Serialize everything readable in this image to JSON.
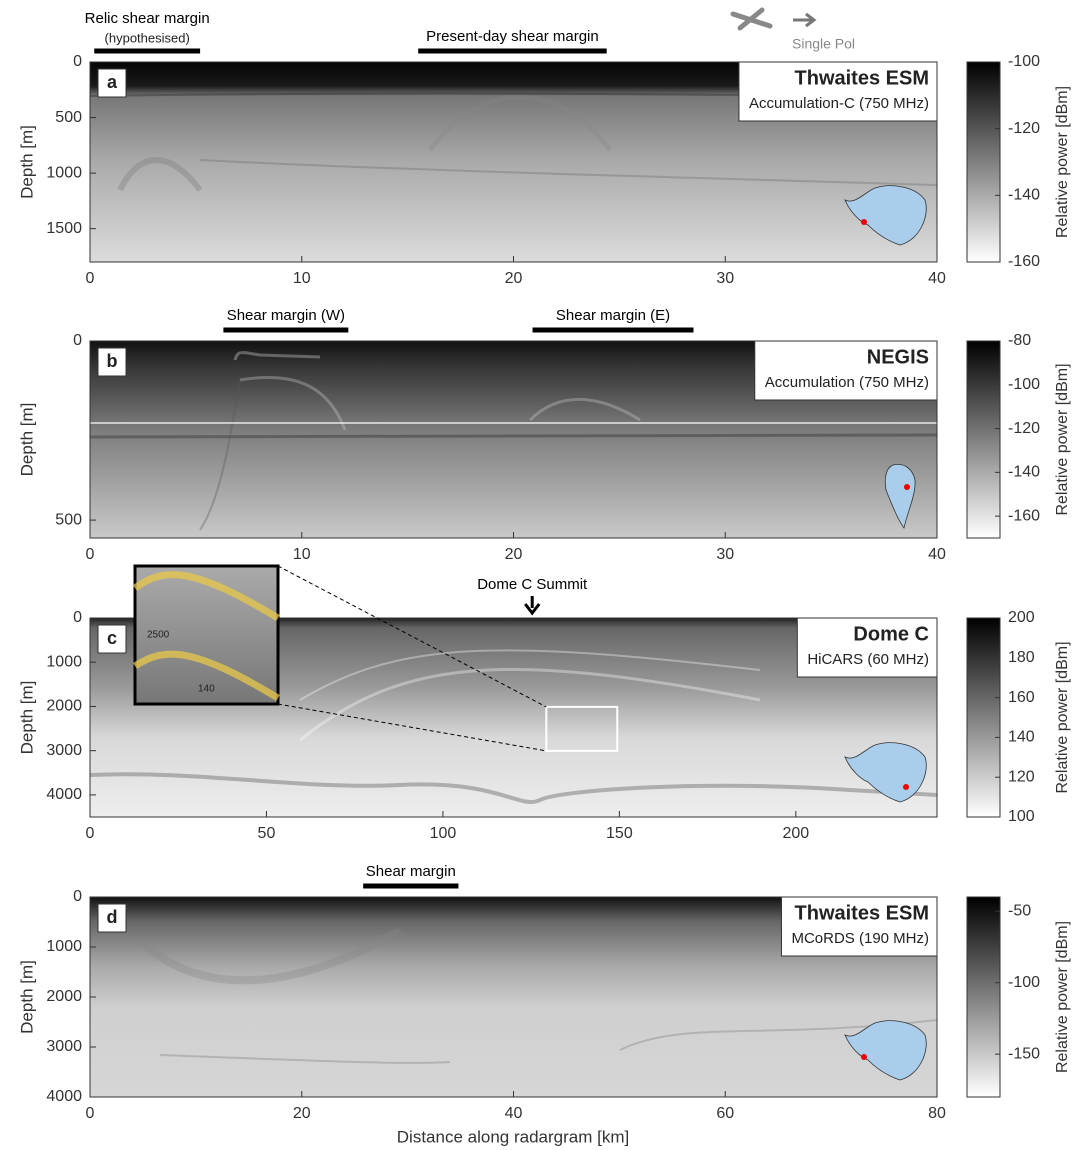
{
  "indicator": {
    "label": "Single Pol"
  },
  "x_axis_label": "Distance along radargram [km]",
  "panels": [
    {
      "label": "a",
      "title": "Thwaites ESM",
      "subtitle": "Accumulation-C (750 MHz)",
      "y_label": "Depth [m]",
      "colorbar_label": "Relative power [dBm]",
      "xlim": [
        0,
        40
      ],
      "xticks": [
        0,
        10,
        20,
        30,
        40
      ],
      "ylim": [
        0,
        1800
      ],
      "yticks": [
        0,
        500,
        1000,
        1500
      ],
      "clim": [
        -160,
        -100
      ],
      "cticks": [
        -100,
        -120,
        -140,
        -160
      ],
      "annotations": [
        {
          "text": "Relic shear margin",
          "subtext": "(hypothesised)",
          "span": [
            0.2,
            5.2
          ]
        },
        {
          "text": "Present-day shear margin",
          "span": [
            15.5,
            24.4
          ]
        }
      ]
    },
    {
      "label": "b",
      "title": "NEGIS",
      "subtitle": "Accumulation (750 MHz)",
      "y_label": "Depth [m]",
      "colorbar_label": "Relative power [dBm]",
      "xlim": [
        0,
        40
      ],
      "xticks": [
        0,
        10,
        20,
        30,
        40
      ],
      "ylim": [
        0,
        550
      ],
      "yticks": [
        0,
        500
      ],
      "clim": [
        -170,
        -80
      ],
      "cticks": [
        -80,
        -100,
        -120,
        -140,
        -160
      ],
      "annotations": [
        {
          "text": "Shear margin (W)",
          "span": [
            6.3,
            12.2
          ]
        },
        {
          "text": "Shear margin (E)",
          "span": [
            20.9,
            28.5
          ]
        }
      ]
    },
    {
      "label": "c",
      "title": "Dome C",
      "subtitle": "HiCARS (60 MHz)",
      "y_label": "Depth [m]",
      "colorbar_label": "Relative power [dBm]",
      "xlim": [
        0,
        240
      ],
      "xticks": [
        0,
        50,
        100,
        150,
        200
      ],
      "ylim": [
        0,
        4500
      ],
      "yticks": [
        0,
        1000,
        2000,
        3000,
        4000
      ],
      "clim": [
        100,
        200
      ],
      "cticks": [
        200,
        180,
        160,
        140,
        120,
        100
      ],
      "annotations": [
        {
          "text": "Dome C Summit",
          "at": 125.3
        }
      ],
      "inset": {
        "box_x": [
          129.3,
          149.4
        ],
        "box_y": [
          2010,
          3005
        ],
        "labels": [
          "2500",
          "140"
        ]
      }
    },
    {
      "label": "d",
      "title": "Thwaites ESM",
      "subtitle": "MCoRDS (190 MHz)",
      "y_label": "Depth [m]",
      "colorbar_label": "Relative power [dBm]",
      "xlim": [
        0,
        80
      ],
      "xticks": [
        0,
        20,
        40,
        60,
        80
      ],
      "ylim": [
        0,
        4000
      ],
      "yticks": [
        0,
        1000,
        2000,
        3000,
        4000
      ],
      "clim": [
        -180,
        -40
      ],
      "cticks": [
        -50,
        -100,
        -150
      ],
      "annotations": [
        {
          "text": "Shear margin",
          "span": [
            25.8,
            34.8
          ]
        }
      ]
    }
  ]
}
